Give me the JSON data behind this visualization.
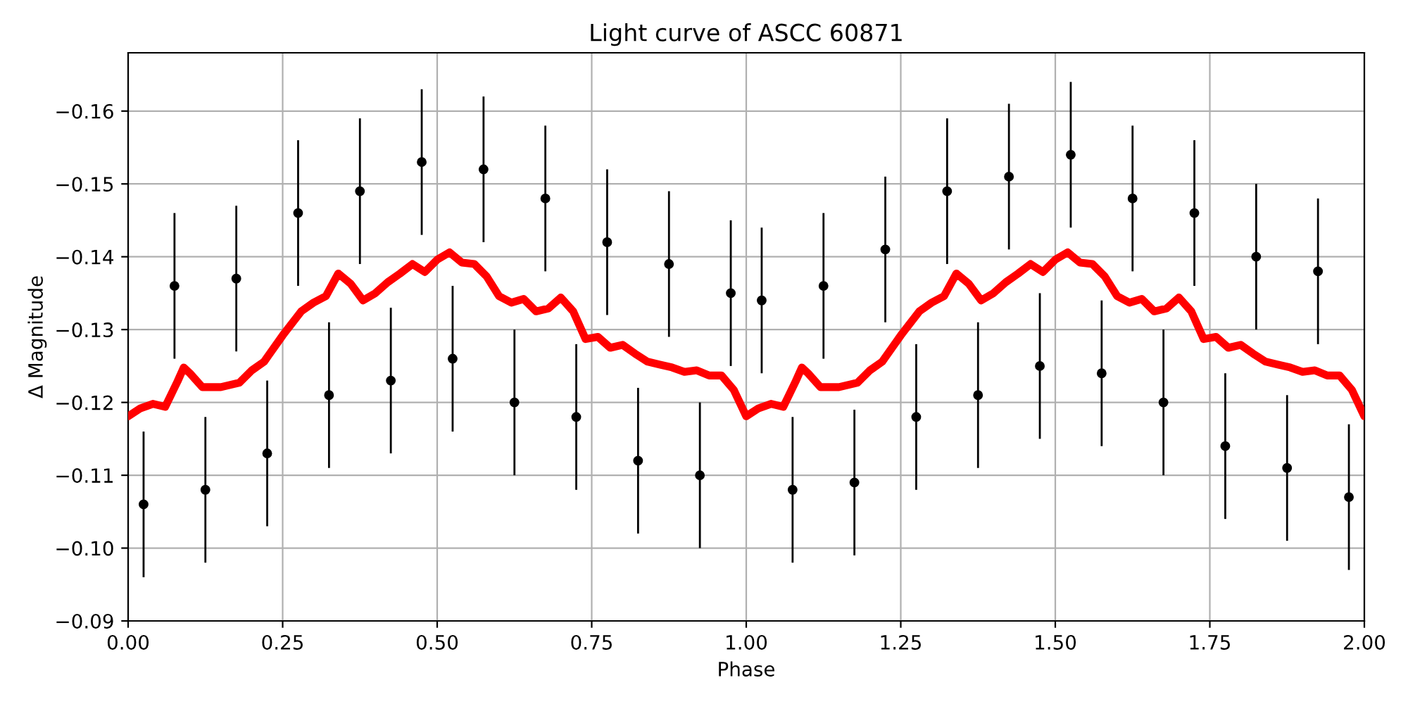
{
  "chart_data": {
    "type": "scatter",
    "title": "Light curve of ASCC 60871",
    "xlabel": "Phase",
    "ylabel": "Δ Magnitude",
    "xlim": [
      0,
      2
    ],
    "ylim": [
      -0.09,
      -0.168
    ],
    "xticks": [
      {
        "value": 0,
        "label": "0.00"
      },
      {
        "value": 0.25,
        "label": "0.25"
      },
      {
        "value": 0.5,
        "label": "0.50"
      },
      {
        "value": 0.75,
        "label": "0.75"
      },
      {
        "value": 1,
        "label": "1.00"
      },
      {
        "value": 1.25,
        "label": "1.25"
      },
      {
        "value": 1.5,
        "label": "1.50"
      },
      {
        "value": 1.75,
        "label": "1.75"
      },
      {
        "value": 2,
        "label": "2.00"
      }
    ],
    "yticks": [
      {
        "value": -0.16,
        "label": "−0.16"
      },
      {
        "value": -0.15,
        "label": "−0.15"
      },
      {
        "value": -0.14,
        "label": "−0.14"
      },
      {
        "value": -0.13,
        "label": "−0.13"
      },
      {
        "value": -0.12,
        "label": "−0.12"
      },
      {
        "value": -0.11,
        "label": "−0.11"
      },
      {
        "value": -0.1,
        "label": "−0.10"
      },
      {
        "value": -0.09,
        "label": "−0.09"
      }
    ],
    "grid": true,
    "series": [
      {
        "color": "#000000",
        "marker": "circle",
        "x": [
          0.025,
          0.075,
          0.125,
          0.175,
          0.225,
          0.275,
          0.325,
          0.375,
          0.425,
          0.475,
          0.525,
          0.575,
          0.625,
          0.675,
          0.725,
          0.775,
          0.825,
          0.875,
          0.925,
          0.975,
          1.025,
          1.075,
          1.125,
          1.175,
          1.225,
          1.275,
          1.325,
          1.375,
          1.425,
          1.475,
          1.525,
          1.575,
          1.625,
          1.675,
          1.725,
          1.775,
          1.825,
          1.875,
          1.925,
          1.975
        ],
        "values": [
          -0.106,
          -0.136,
          -0.108,
          -0.137,
          -0.113,
          -0.146,
          -0.121,
          -0.149,
          -0.123,
          -0.153,
          -0.126,
          -0.152,
          -0.12,
          -0.148,
          -0.118,
          -0.142,
          -0.112,
          -0.139,
          -0.11,
          -0.135,
          -0.134,
          -0.108,
          -0.136,
          -0.109,
          -0.141,
          -0.118,
          -0.149,
          -0.121,
          -0.151,
          -0.125,
          -0.154,
          -0.124,
          -0.148,
          -0.12,
          -0.146,
          -0.114,
          -0.14,
          -0.111,
          -0.138,
          -0.107
        ],
        "errors": [
          0.01,
          0.01,
          0.01,
          0.01,
          0.01,
          0.01,
          0.01,
          0.01,
          0.01,
          0.01,
          0.01,
          0.01,
          0.01,
          0.01,
          0.01,
          0.01,
          0.01,
          0.01,
          0.01,
          0.01,
          0.01,
          0.01,
          0.01,
          0.01,
          0.01,
          0.01,
          0.01,
          0.01,
          0.01,
          0.01,
          0.01,
          0.01,
          0.01,
          0.01,
          0.01,
          0.01,
          0.01,
          0.01,
          0.01,
          0.01
        ]
      },
      {
        "type": "line",
        "color": "#ff0000",
        "line_style": "solid",
        "x": [
          0,
          0.02,
          0.04,
          0.06,
          0.08,
          0.09,
          0.1,
          0.12,
          0.15,
          0.18,
          0.2,
          0.22,
          0.25,
          0.28,
          0.3,
          0.32,
          0.34,
          0.36,
          0.38,
          0.4,
          0.42,
          0.44,
          0.46,
          0.48,
          0.5,
          0.52,
          0.54,
          0.56,
          0.58,
          0.6,
          0.62,
          0.64,
          0.66,
          0.68,
          0.7,
          0.72,
          0.74,
          0.76,
          0.78,
          0.8,
          0.82,
          0.84,
          0.86,
          0.88,
          0.9,
          0.92,
          0.94,
          0.96,
          0.98,
          1.0,
          1.02,
          1.04,
          1.06,
          1.08,
          1.09,
          1.1,
          1.12,
          1.15,
          1.18,
          1.2,
          1.22,
          1.25,
          1.28,
          1.3,
          1.32,
          1.34,
          1.36,
          1.38,
          1.4,
          1.42,
          1.44,
          1.46,
          1.48,
          1.5,
          1.52,
          1.54,
          1.56,
          1.58,
          1.6,
          1.62,
          1.64,
          1.66,
          1.68,
          1.7,
          1.72,
          1.74,
          1.76,
          1.78,
          1.8,
          1.82,
          1.84,
          1.86,
          1.88,
          1.9,
          1.92,
          1.94,
          1.96,
          1.98,
          2.0
        ],
        "values": [
          -0.1181,
          -0.1192,
          -0.1198,
          -0.1194,
          -0.1229,
          -0.1248,
          -0.124,
          -0.1221,
          -0.1221,
          -0.1227,
          -0.1244,
          -0.1256,
          -0.1292,
          -0.1325,
          -0.1337,
          -0.1346,
          -0.1377,
          -0.1363,
          -0.134,
          -0.135,
          -0.1365,
          -0.1377,
          -0.139,
          -0.1379,
          -0.1396,
          -0.1406,
          -0.1392,
          -0.139,
          -0.1373,
          -0.1346,
          -0.1337,
          -0.1342,
          -0.1325,
          -0.1329,
          -0.1344,
          -0.1325,
          -0.1287,
          -0.129,
          -0.1275,
          -0.1279,
          -0.1267,
          -0.1256,
          -0.1252,
          -0.1248,
          -0.1242,
          -0.1244,
          -0.1237,
          -0.1237,
          -0.1217,
          -0.1181,
          -0.1192,
          -0.1198,
          -0.1194,
          -0.1229,
          -0.1248,
          -0.124,
          -0.1221,
          -0.1221,
          -0.1227,
          -0.1244,
          -0.1256,
          -0.1292,
          -0.1325,
          -0.1337,
          -0.1346,
          -0.1377,
          -0.1363,
          -0.134,
          -0.135,
          -0.1365,
          -0.1377,
          -0.139,
          -0.1379,
          -0.1396,
          -0.1406,
          -0.1392,
          -0.139,
          -0.1373,
          -0.1346,
          -0.1337,
          -0.1342,
          -0.1325,
          -0.1329,
          -0.1344,
          -0.1325,
          -0.1287,
          -0.129,
          -0.1275,
          -0.1279,
          -0.1267,
          -0.1256,
          -0.1252,
          -0.1248,
          -0.1242,
          -0.1244,
          -0.1237,
          -0.1237,
          -0.1217,
          -0.1181
        ]
      }
    ]
  }
}
